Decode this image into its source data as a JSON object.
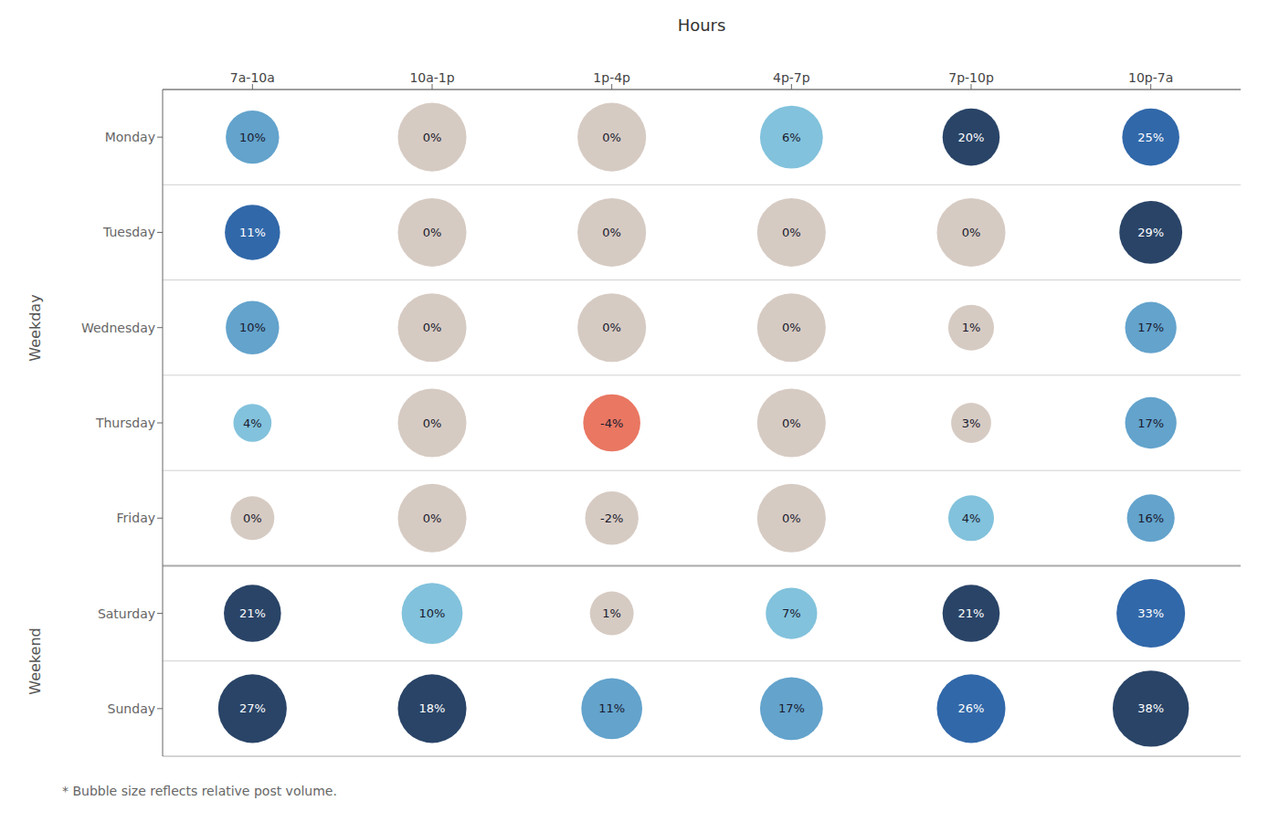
{
  "chart_data": {
    "type": "bubble_grid",
    "title": "Hours",
    "categories": [
      "7a-10a",
      "10a-1p",
      "1p-4p",
      "4p-7p",
      "7p-10p",
      "10p-7a"
    ],
    "rows": [
      "Monday",
      "Tuesday",
      "Wednesday",
      "Thursday",
      "Friday",
      "Saturday",
      "Sunday"
    ],
    "values": [
      [
        10,
        0,
        0,
        6,
        20,
        25
      ],
      [
        11,
        0,
        0,
        0,
        0,
        29
      ],
      [
        10,
        0,
        0,
        0,
        1,
        17
      ],
      [
        4,
        0,
        -4,
        0,
        3,
        17
      ],
      [
        0,
        0,
        -2,
        0,
        4,
        16
      ],
      [
        21,
        10,
        1,
        7,
        21,
        33
      ],
      [
        27,
        18,
        11,
        17,
        26,
        38
      ]
    ],
    "value_labels": [
      [
        "10%",
        "0%",
        "0%",
        "6%",
        "20%",
        "25%"
      ],
      [
        "11%",
        "0%",
        "0%",
        "0%",
        "0%",
        "29%"
      ],
      [
        "10%",
        "0%",
        "0%",
        "0%",
        "1%",
        "17%"
      ],
      [
        "4%",
        "0%",
        "-4%",
        "0%",
        "3%",
        "17%"
      ],
      [
        "0%",
        "0%",
        "-2%",
        "0%",
        "4%",
        "16%"
      ],
      [
        "21%",
        "10%",
        "1%",
        "7%",
        "21%",
        "33%"
      ],
      [
        "27%",
        "18%",
        "11%",
        "17%",
        "26%",
        "38%"
      ]
    ],
    "sizes": [
      [
        0.28,
        0.36,
        0.36,
        0.33,
        0.3,
        0.3
      ],
      [
        0.29,
        0.36,
        0.36,
        0.36,
        0.36,
        0.33
      ],
      [
        0.28,
        0.36,
        0.36,
        0.36,
        0.24,
        0.27
      ],
      [
        0.2,
        0.36,
        0.3,
        0.36,
        0.21,
        0.27
      ],
      [
        0.23,
        0.36,
        0.28,
        0.36,
        0.24,
        0.25
      ],
      [
        0.3,
        0.32,
        0.23,
        0.27,
        0.3,
        0.36
      ],
      [
        0.36,
        0.36,
        0.32,
        0.33,
        0.36,
        0.4
      ]
    ],
    "colors": [
      [
        "#5b9ec9",
        "#d4c8c0",
        "#d4c8c0",
        "#7bbfda",
        "#1e3a5f",
        "#2660a4"
      ],
      [
        "#2660a4",
        "#d4c8c0",
        "#d4c8c0",
        "#d4c8c0",
        "#d4c8c0",
        "#1e3a5f"
      ],
      [
        "#5b9ec9",
        "#d4c8c0",
        "#d4c8c0",
        "#d4c8c0",
        "#d4c8c0",
        "#5b9ec9"
      ],
      [
        "#7bbfda",
        "#d4c8c0",
        "#e8705a",
        "#d4c8c0",
        "#d4c8c0",
        "#5b9ec9"
      ],
      [
        "#d4c8c0",
        "#d4c8c0",
        "#d4c8c0",
        "#d4c8c0",
        "#7bbfda",
        "#5b9ec9"
      ],
      [
        "#1e3a5f",
        "#7bbfda",
        "#d4c8c0",
        "#7bbfda",
        "#1e3a5f",
        "#2660a4"
      ],
      [
        "#1e3a5f",
        "#1e3a5f",
        "#5b9ec9",
        "#5b9ec9",
        "#2660a4",
        "#1e3a5f"
      ]
    ],
    "groups": [
      {
        "label": "Weekday",
        "rows": [
          "Monday",
          "Tuesday",
          "Wednesday",
          "Thursday",
          "Friday"
        ]
      },
      {
        "label": "Weekend",
        "rows": [
          "Saturday",
          "Sunday"
        ]
      }
    ],
    "footnote": "* Bubble size reflects relative post volume.",
    "data_labels": true,
    "grid": true
  }
}
